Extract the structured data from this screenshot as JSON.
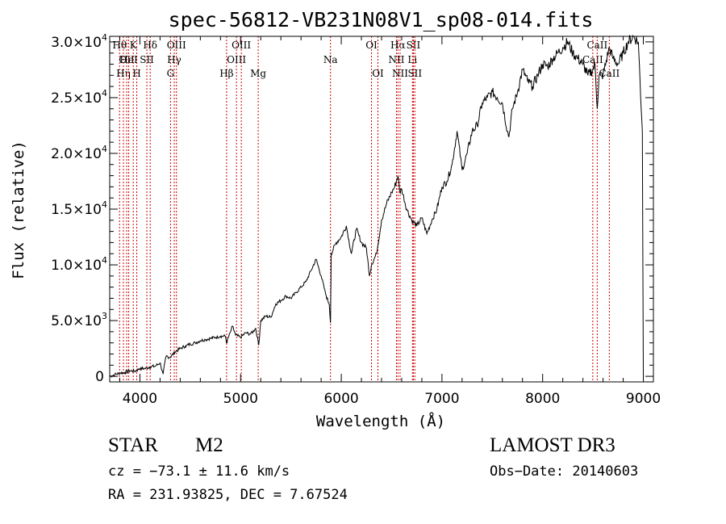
{
  "chart_data": {
    "type": "line",
    "title": "spec-56812-VB231N08V1_sp08-014.fits",
    "xlabel": "Wavelength (Å)",
    "ylabel": "Flux (relative)",
    "xlim": [
      3700,
      9100
    ],
    "ylim": [
      -500,
      30500
    ],
    "x_ticks": [
      {
        "value": 4000,
        "label": "4000"
      },
      {
        "value": 5000,
        "label": "5000"
      },
      {
        "value": 6000,
        "label": "6000"
      },
      {
        "value": 7000,
        "label": "7000"
      },
      {
        "value": 8000,
        "label": "8000"
      },
      {
        "value": 9000,
        "label": "9000"
      }
    ],
    "y_ticks": [
      {
        "value": 0,
        "mantissa": "0",
        "exp": ""
      },
      {
        "value": 5000,
        "mantissa": "5.0×10",
        "exp": "3"
      },
      {
        "value": 10000,
        "mantissa": "1.0×10",
        "exp": "4"
      },
      {
        "value": 15000,
        "mantissa": "1.5×10",
        "exp": "4"
      },
      {
        "value": 20000,
        "mantissa": "2.0×10",
        "exp": "4"
      },
      {
        "value": 25000,
        "mantissa": "2.5×10",
        "exp": "4"
      },
      {
        "value": 30000,
        "mantissa": "3.0×10",
        "exp": "4"
      }
    ],
    "series": [
      {
        "name": "flux",
        "color": "#000000",
        "x": [
          3700,
          3750,
          3800,
          3850,
          3900,
          3950,
          4000,
          4050,
          4100,
          4150,
          4200,
          4230,
          4260,
          4300,
          4350,
          4400,
          4450,
          4500,
          4550,
          4600,
          4650,
          4700,
          4750,
          4800,
          4850,
          4860,
          4900,
          4920,
          4950,
          5000,
          5050,
          5100,
          5150,
          5180,
          5200,
          5250,
          5300,
          5350,
          5400,
          5450,
          5500,
          5550,
          5600,
          5650,
          5700,
          5750,
          5800,
          5850,
          5880,
          5893,
          5900,
          5950,
          6000,
          6050,
          6100,
          6150,
          6200,
          6250,
          6280,
          6300,
          6350,
          6400,
          6450,
          6500,
          6530,
          6563,
          6580,
          6600,
          6650,
          6700,
          6750,
          6800,
          6850,
          6900,
          6950,
          7000,
          7050,
          7100,
          7150,
          7200,
          7250,
          7300,
          7350,
          7400,
          7450,
          7500,
          7550,
          7600,
          7650,
          7665,
          7700,
          7750,
          7800,
          7850,
          7900,
          7950,
          8000,
          8050,
          8100,
          8150,
          8200,
          8250,
          8300,
          8350,
          8400,
          8450,
          8498,
          8520,
          8542,
          8560,
          8600,
          8662,
          8700,
          8750,
          8800,
          8850,
          8900,
          8950,
          8990,
          9000
        ],
        "values": [
          0,
          150,
          300,
          350,
          500,
          450,
          700,
          700,
          850,
          900,
          1200,
          200,
          1800,
          1700,
          2200,
          2500,
          2700,
          2900,
          3000,
          3200,
          3300,
          3400,
          3500,
          3600,
          3600,
          3000,
          4000,
          4500,
          3700,
          3500,
          3900,
          3800,
          4300,
          2800,
          5000,
          5400,
          5300,
          6500,
          6800,
          7200,
          7000,
          7500,
          8000,
          8500,
          9500,
          10500,
          9000,
          7200,
          6500,
          4800,
          11000,
          12000,
          12500,
          13500,
          11000,
          13200,
          12000,
          11500,
          9000,
          10000,
          11000,
          14000,
          15500,
          16500,
          17000,
          18000,
          16500,
          16800,
          15000,
          14000,
          13500,
          14200,
          12800,
          14000,
          15000,
          17000,
          17500,
          19000,
          22000,
          18500,
          20000,
          22000,
          22500,
          24500,
          25000,
          25500,
          25000,
          24500,
          22000,
          21500,
          24000,
          25500,
          27500,
          26500,
          26000,
          27000,
          28000,
          27800,
          28500,
          29000,
          29500,
          30000,
          29000,
          28500,
          28000,
          27000,
          27500,
          28000,
          24000,
          27000,
          27000,
          29500,
          28500,
          28000,
          29000,
          30000,
          30500,
          30000,
          22000,
          0
        ]
      }
    ],
    "spectral_lines": [
      {
        "wl": 3798,
        "label": "Hθ",
        "row": 0
      },
      {
        "wl": 3836,
        "label": "Hη",
        "row": 2
      },
      {
        "wl": 3869,
        "label": "OII",
        "row": 1
      },
      {
        "wl": 3889,
        "label": "HeI",
        "row": 1
      },
      {
        "wl": 3934,
        "label": "K",
        "row": 0
      },
      {
        "wl": 3969,
        "label": "H",
        "row": 2
      },
      {
        "wl": 4069,
        "label": "SII",
        "row": 1
      },
      {
        "wl": 4102,
        "label": "Hδ",
        "row": 0
      },
      {
        "wl": 4304,
        "label": "G",
        "row": 2
      },
      {
        "wl": 4341,
        "label": "Hγ",
        "row": 1
      },
      {
        "wl": 4363,
        "label": "OIII",
        "row": 0
      },
      {
        "wl": 4861,
        "label": "Hβ",
        "row": 2
      },
      {
        "wl": 4959,
        "label": "OIII",
        "row": 1
      },
      {
        "wl": 5007,
        "label": "OIII",
        "row": 0
      },
      {
        "wl": 5175,
        "label": "Mg",
        "row": 2
      },
      {
        "wl": 5893,
        "label": "Na",
        "row": 1
      },
      {
        "wl": 6300,
        "label": "OI",
        "row": 0
      },
      {
        "wl": 6364,
        "label": "OI",
        "row": 2
      },
      {
        "wl": 6548,
        "label": "NII",
        "row": 1
      },
      {
        "wl": 6563,
        "label": "Hα",
        "row": 0
      },
      {
        "wl": 6584,
        "label": "NII",
        "row": 2
      },
      {
        "wl": 6707,
        "label": "Li",
        "row": 1
      },
      {
        "wl": 6716,
        "label": "SII",
        "row": 0
      },
      {
        "wl": 6731,
        "label": "SII",
        "row": 2
      },
      {
        "wl": 8498,
        "label": "CaII",
        "row": 1
      },
      {
        "wl": 8542,
        "label": "CaII",
        "row": 0
      },
      {
        "wl": 8662,
        "label": "CaII",
        "row": 2
      }
    ],
    "line_color": "#cc0000"
  },
  "info": {
    "obj_type": "STAR",
    "subclass": "M2",
    "survey": "LAMOST DR3",
    "cz": "cz = −73.1 ± 11.6 km/s",
    "obs_date": "Obs−Date: 20140603",
    "coords": "RA = 231.93825, DEC =   7.67524"
  }
}
